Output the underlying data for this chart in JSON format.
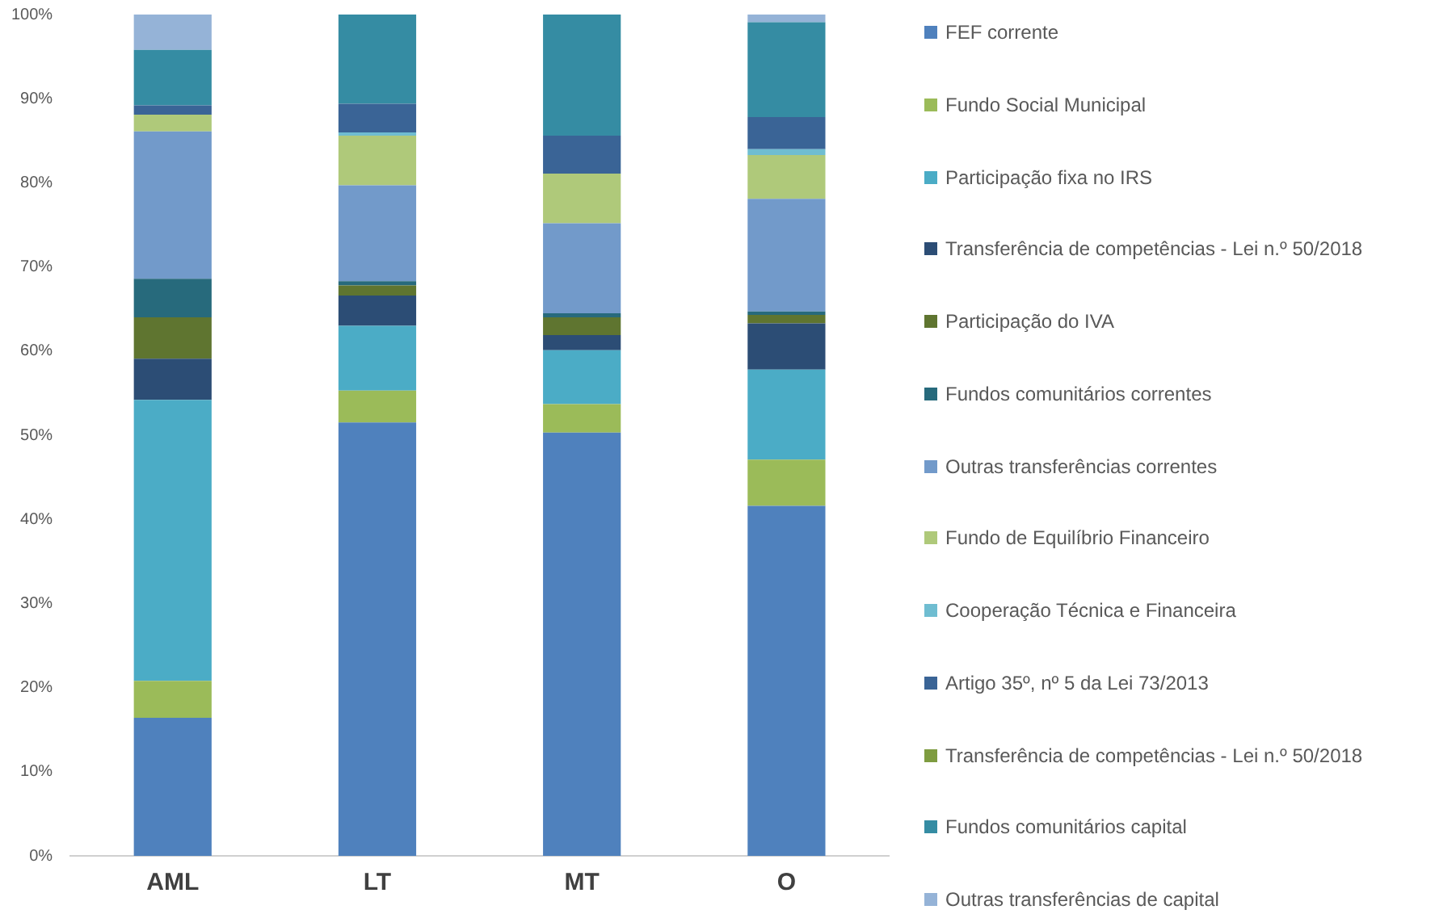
{
  "chart_data": {
    "type": "bar",
    "stacked": true,
    "categories": [
      "AML",
      "LT",
      "MT",
      "O"
    ],
    "series": [
      {
        "name": "FEF corrente",
        "color": "#4f81bd",
        "values": [
          16.4,
          51.5,
          50.3,
          41.6
        ]
      },
      {
        "name": "Fundo Social Municipal",
        "color": "#9bbb59",
        "values": [
          4.4,
          3.8,
          3.4,
          5.5
        ]
      },
      {
        "name": "Participação fixa no IRS",
        "color": "#4bacc6",
        "values": [
          33.4,
          7.7,
          6.4,
          10.7
        ]
      },
      {
        "name": "Transferência de competências - Lei n.º 50/2018",
        "color": "#2c4d75",
        "values": [
          4.9,
          3.6,
          1.8,
          5.5
        ]
      },
      {
        "name": "Participação do IVA",
        "color": "#5f7530",
        "values": [
          4.9,
          1.2,
          2.1,
          1.0
        ]
      },
      {
        "name": "Fundos comunitários correntes",
        "color": "#276a7c",
        "values": [
          4.6,
          0.5,
          0.5,
          0.4
        ]
      },
      {
        "name": "Outras transferências correntes",
        "color": "#729aca",
        "values": [
          17.5,
          11.4,
          10.7,
          13.4
        ]
      },
      {
        "name": "Fundo de Equilíbrio Financeiro",
        "color": "#afc97a",
        "values": [
          2.0,
          5.9,
          5.9,
          5.2
        ]
      },
      {
        "name": "Cooperação Técnica e Financeira",
        "color": "#6fbdd1",
        "values": [
          0,
          0.4,
          0,
          0.7
        ]
      },
      {
        "name": "Artigo 35º, nº 5 da Lei 73/2013",
        "color": "#3a6496",
        "values": [
          1.1,
          3.4,
          4.5,
          3.8
        ]
      },
      {
        "name": "Transferência de competências - Lei n.º 50/2018",
        "color": "#7e9c40",
        "values": [
          0,
          0,
          0,
          0
        ]
      },
      {
        "name": "Fundos comunitários capital",
        "color": "#358ca3",
        "values": [
          6.6,
          10.6,
          14.4,
          11.3
        ]
      },
      {
        "name": "Outras transferências de capital",
        "color": "#95b3d7",
        "values": [
          4.2,
          0,
          0,
          0.9
        ]
      }
    ],
    "ylim": [
      0,
      100
    ],
    "yticks": [
      {
        "value": 0,
        "label": "0%"
      },
      {
        "value": 10,
        "label": "10%"
      },
      {
        "value": 20,
        "label": "20%"
      },
      {
        "value": 30,
        "label": "30%"
      },
      {
        "value": 40,
        "label": "40%"
      },
      {
        "value": 50,
        "label": "50%"
      },
      {
        "value": 60,
        "label": "60%"
      },
      {
        "value": 70,
        "label": "70%"
      },
      {
        "value": 80,
        "label": "80%"
      },
      {
        "value": 90,
        "label": "90%"
      },
      {
        "value": 100,
        "label": "100%"
      }
    ],
    "grid": false,
    "legend": "right"
  }
}
